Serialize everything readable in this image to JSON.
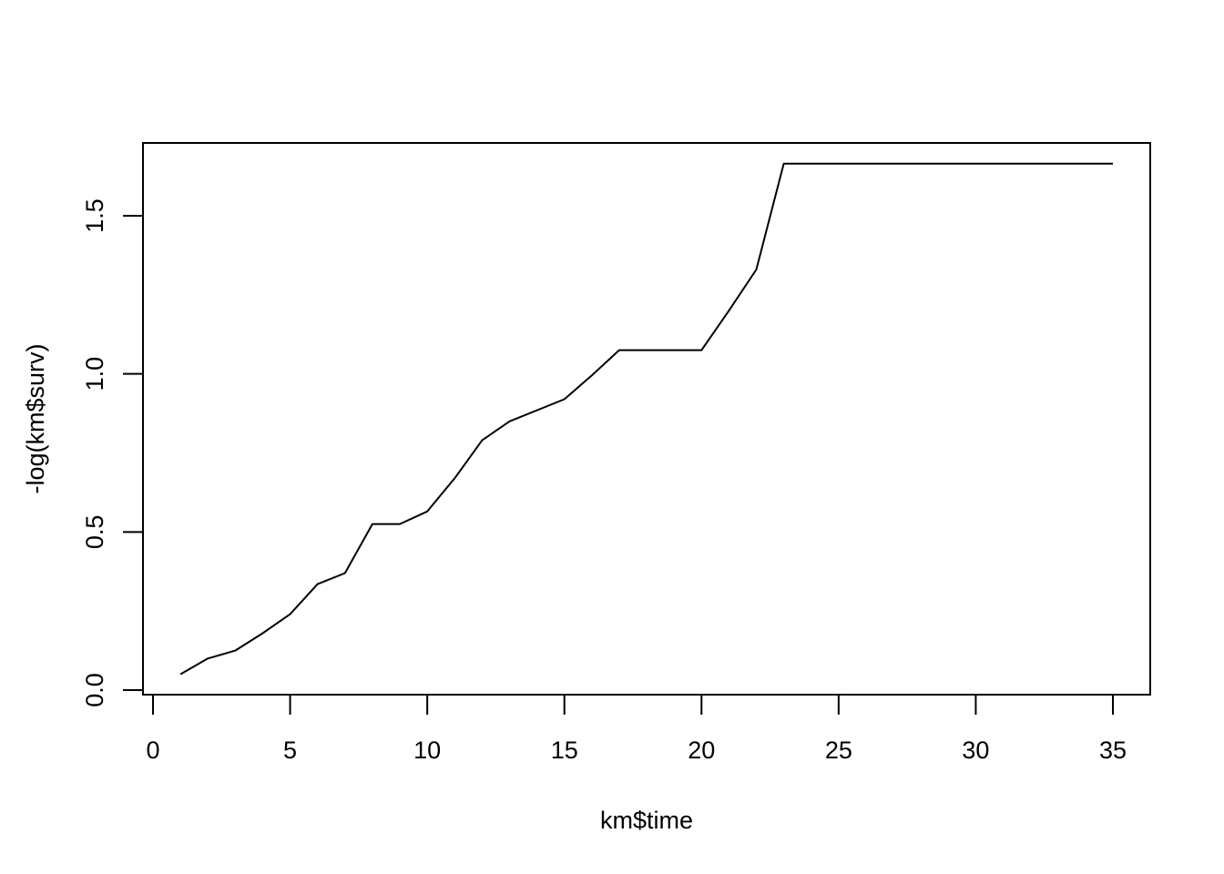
{
  "chart_data": {
    "type": "line",
    "title": "",
    "xlabel": "km$time",
    "ylabel": "-log(km$surv)",
    "xlim": [
      0,
      35
    ],
    "ylim": [
      0,
      1.67
    ],
    "x_ticks": [
      0,
      5,
      10,
      15,
      20,
      25,
      30,
      35
    ],
    "y_ticks": [
      0.0,
      0.5,
      1.0,
      1.5
    ],
    "x_tick_labels": [
      "0",
      "5",
      "10",
      "15",
      "20",
      "25",
      "30",
      "35"
    ],
    "y_tick_labels": [
      "0.0",
      "0.5",
      "1.0",
      "1.5"
    ],
    "grid": false,
    "legend": "none",
    "line_color": "#000000",
    "series": [
      {
        "x": [
          1,
          2,
          3,
          4,
          5,
          6,
          7,
          8,
          9,
          10,
          11,
          12,
          13,
          15,
          16,
          17,
          20,
          21,
          22,
          23,
          35
        ],
        "values": [
          0.05,
          0.1,
          0.125,
          0.18,
          0.24,
          0.335,
          0.37,
          0.525,
          0.525,
          0.565,
          0.67,
          0.79,
          0.85,
          0.92,
          0.995,
          1.075,
          1.075,
          1.2,
          1.33,
          1.665,
          1.665
        ]
      }
    ]
  }
}
